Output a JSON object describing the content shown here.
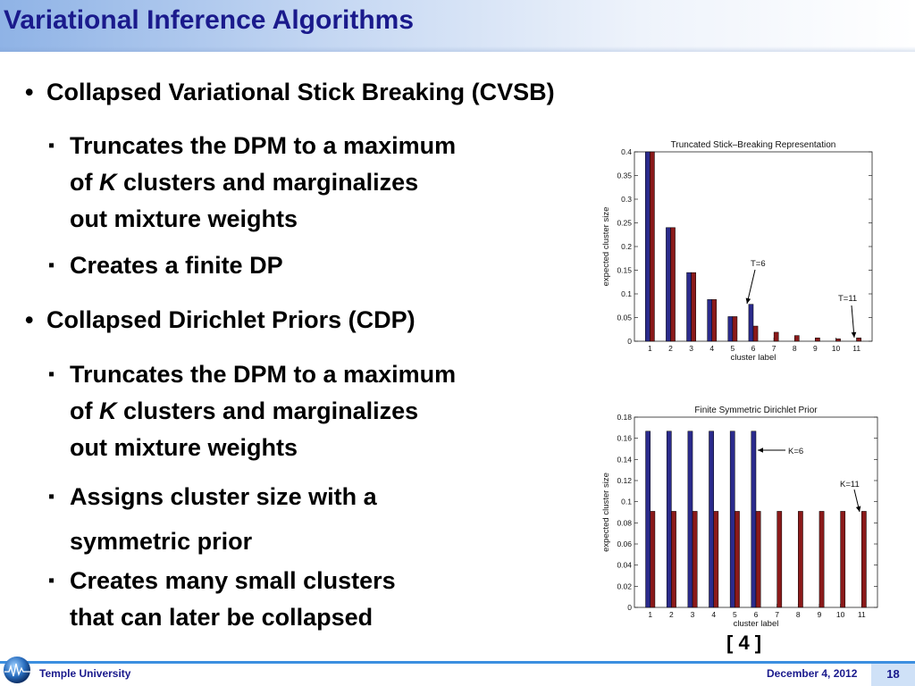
{
  "slide": {
    "title": "Variational Inference Algorithms",
    "bullets": [
      {
        "text": "Collapsed Variational Stick Breaking (CVSB)",
        "subs": [
          {
            "lines": [
              {
                "before": "Truncates the DPM to a maximum"
              },
              {
                "before": "of ",
                "italic": "K",
                "after": " clusters and marginalizes"
              },
              {
                "before": "out mixture weights"
              }
            ]
          },
          {
            "lines": [
              {
                "before": "Creates a finite DP"
              }
            ]
          }
        ]
      },
      {
        "text": "Collapsed Dirichlet Priors (CDP)",
        "subs": [
          {
            "lines": [
              {
                "before": "Truncates the DPM to a maximum"
              },
              {
                "before": "of ",
                "italic": "K",
                "after": " clusters and marginalizes"
              },
              {
                "before": "out mixture weights"
              }
            ]
          },
          {
            "lines": [
              {
                "before": "Assigns cluster size with a"
              },
              {
                "before": "symmetric prior"
              }
            ]
          },
          {
            "lines": [
              {
                "before": "Creates many small clusters"
              },
              {
                "before": "that can later be collapsed"
              }
            ]
          }
        ]
      }
    ],
    "reference": "[ 4 ]"
  },
  "footer": {
    "left": "Temple University",
    "date": "December 4, 2012",
    "page": "18"
  },
  "colors": {
    "title": "#1a1a8c",
    "blue_bar": "#2b2b8c",
    "red_bar": "#8b1a1a",
    "footer_line": "#3c8fe0"
  },
  "chart_data": [
    {
      "type": "bar",
      "title": "Truncated Stick–Breaking Representation",
      "xlabel": "cluster label",
      "ylabel": "expected cluster size",
      "categories": [
        "1",
        "2",
        "3",
        "4",
        "5",
        "6",
        "7",
        "8",
        "9",
        "10",
        "11"
      ],
      "ylim": [
        0,
        0.4
      ],
      "yticks": [
        "0",
        "0.05",
        "0.1",
        "0.15",
        "0.2",
        "0.25",
        "0.3",
        "0.35",
        "0.4"
      ],
      "series": [
        {
          "values": [
            0.4,
            0.24,
            0.145,
            0.088,
            0.052,
            0.078,
            null,
            null,
            null,
            null,
            null
          ]
        },
        {
          "values": [
            0.4,
            0.24,
            0.145,
            0.088,
            0.052,
            0.032,
            0.019,
            0.012,
            0.007,
            0.005,
            0.007
          ]
        }
      ],
      "annotations": [
        {
          "text": "T=6",
          "at": 6
        },
        {
          "text": "T=11",
          "at": 11
        }
      ]
    },
    {
      "type": "bar",
      "title": "Finite Symmetric Dirichlet Prior",
      "xlabel": "cluster label",
      "ylabel": "expected cluster size",
      "categories": [
        "1",
        "2",
        "3",
        "4",
        "5",
        "6",
        "7",
        "8",
        "9",
        "10",
        "11"
      ],
      "ylim": [
        0,
        0.18
      ],
      "yticks": [
        "0",
        "0.02",
        "0.04",
        "0.06",
        "0.08",
        "0.1",
        "0.12",
        "0.14",
        "0.16",
        "0.18"
      ],
      "series": [
        {
          "values": [
            0.1667,
            0.1667,
            0.1667,
            0.1667,
            0.1667,
            0.1667,
            null,
            null,
            null,
            null,
            null
          ]
        },
        {
          "values": [
            0.0909,
            0.0909,
            0.0909,
            0.0909,
            0.0909,
            0.0909,
            0.0909,
            0.0909,
            0.0909,
            0.0909,
            0.0909
          ]
        }
      ],
      "annotations": [
        {
          "text": "K=6",
          "at": 6
        },
        {
          "text": "K=11",
          "at": 11
        }
      ]
    }
  ]
}
